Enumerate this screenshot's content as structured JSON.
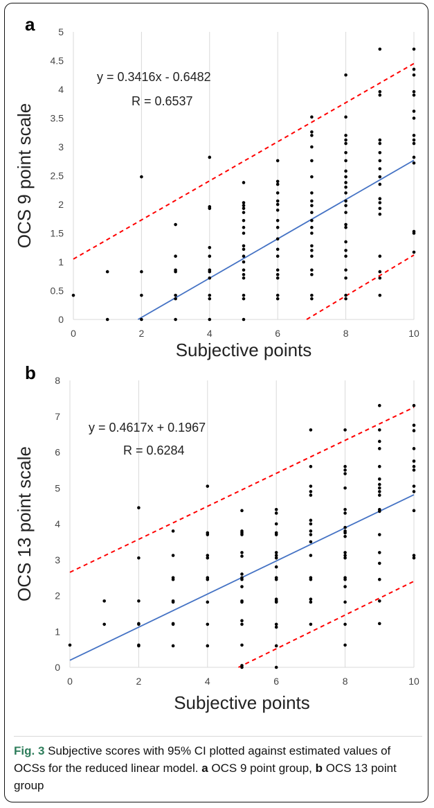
{
  "chart_data": [
    {
      "type": "scatter",
      "panel_label": "a",
      "xlabel": "Subjective points",
      "ylabel": "OCS 9 point scale",
      "xlim": [
        0,
        10
      ],
      "ylim": [
        0,
        5
      ],
      "x_ticks": [
        "0",
        "2",
        "4",
        "6",
        "8",
        "10"
      ],
      "y_ticks": [
        "0",
        "0.5",
        "1",
        "1.5",
        "2",
        "2.5",
        "3",
        "3.5",
        "4",
        "4.5",
        "5"
      ],
      "grid": "vertical",
      "equation": "y = 0.3416x - 0.6482",
      "r_label": "R = 0.6537",
      "fit": {
        "slope": 0.3416,
        "intercept": -0.6482
      },
      "ci_upper": [
        [
          0,
          1.05
        ],
        [
          10,
          4.45
        ]
      ],
      "ci_lower": [
        [
          6.85,
          0
        ],
        [
          10,
          1.12
        ]
      ],
      "colors": {
        "points": "#000000",
        "fit": "#4472c4",
        "ci": "#ff0000"
      },
      "points": [
        [
          0,
          0.42
        ],
        [
          1,
          0
        ],
        [
          1,
          0.83
        ],
        [
          2,
          0
        ],
        [
          2,
          0.42
        ],
        [
          2,
          0.83
        ],
        [
          2,
          2.48
        ],
        [
          3,
          0
        ],
        [
          3,
          0.36
        ],
        [
          3,
          0.42
        ],
        [
          3,
          0.83
        ],
        [
          3,
          0.86
        ],
        [
          3,
          1.1
        ],
        [
          3,
          1.65
        ],
        [
          4,
          0
        ],
        [
          4,
          0.36
        ],
        [
          4,
          0.42
        ],
        [
          4,
          0.72
        ],
        [
          4,
          0.83
        ],
        [
          4,
          0.86
        ],
        [
          4,
          1.1
        ],
        [
          4,
          1.25
        ],
        [
          4,
          1.93
        ],
        [
          4,
          1.96
        ],
        [
          4,
          2.82
        ],
        [
          5,
          0
        ],
        [
          5,
          0.36
        ],
        [
          5,
          0.42
        ],
        [
          5,
          0.72
        ],
        [
          5,
          0.78
        ],
        [
          5,
          0.86
        ],
        [
          5,
          1.0
        ],
        [
          5,
          1.1
        ],
        [
          5,
          1.22
        ],
        [
          5,
          1.28
        ],
        [
          5,
          1.5
        ],
        [
          5,
          1.6
        ],
        [
          5,
          1.72
        ],
        [
          5,
          1.86
        ],
        [
          5,
          1.93
        ],
        [
          5,
          1.98
        ],
        [
          5,
          2.03
        ],
        [
          5,
          2.38
        ],
        [
          6,
          0.36
        ],
        [
          6,
          0.42
        ],
        [
          6,
          0.72
        ],
        [
          6,
          0.78
        ],
        [
          6,
          0.86
        ],
        [
          6,
          1.1
        ],
        [
          6,
          1.22
        ],
        [
          6,
          1.4
        ],
        [
          6,
          1.6
        ],
        [
          6,
          1.72
        ],
        [
          6,
          1.9
        ],
        [
          6,
          2.0
        ],
        [
          6,
          2.06
        ],
        [
          6,
          2.2
        ],
        [
          6,
          2.35
        ],
        [
          6,
          2.4
        ],
        [
          6,
          2.76
        ],
        [
          7,
          0.36
        ],
        [
          7,
          0.42
        ],
        [
          7,
          0.78
        ],
        [
          7,
          0.86
        ],
        [
          7,
          1.1
        ],
        [
          7,
          1.2
        ],
        [
          7,
          1.28
        ],
        [
          7,
          1.5
        ],
        [
          7,
          1.6
        ],
        [
          7,
          1.72
        ],
        [
          7,
          1.86
        ],
        [
          7,
          1.98
        ],
        [
          7,
          2.06
        ],
        [
          7,
          2.2
        ],
        [
          7,
          2.48
        ],
        [
          7,
          2.76
        ],
        [
          7,
          3.0
        ],
        [
          7,
          3.2
        ],
        [
          7,
          3.26
        ],
        [
          7,
          3.52
        ],
        [
          8,
          0.36
        ],
        [
          8,
          0.42
        ],
        [
          8,
          0.72
        ],
        [
          8,
          0.86
        ],
        [
          8,
          1.1
        ],
        [
          8,
          1.2
        ],
        [
          8,
          1.35
        ],
        [
          8,
          1.6
        ],
        [
          8,
          1.65
        ],
        [
          8,
          1.86
        ],
        [
          8,
          1.98
        ],
        [
          8,
          2.06
        ],
        [
          8,
          2.2
        ],
        [
          8,
          2.3
        ],
        [
          8,
          2.38
        ],
        [
          8,
          2.48
        ],
        [
          8,
          2.58
        ],
        [
          8,
          2.76
        ],
        [
          8,
          2.9
        ],
        [
          8,
          3.06
        ],
        [
          8,
          3.12
        ],
        [
          8,
          3.2
        ],
        [
          8,
          3.52
        ],
        [
          8,
          4.25
        ],
        [
          9,
          0.42
        ],
        [
          9,
          0.72
        ],
        [
          9,
          0.83
        ],
        [
          9,
          1.1
        ],
        [
          9,
          1.83
        ],
        [
          9,
          1.93
        ],
        [
          9,
          2.03
        ],
        [
          9,
          2.1
        ],
        [
          9,
          2.35
        ],
        [
          9,
          2.48
        ],
        [
          9,
          2.62
        ],
        [
          9,
          2.76
        ],
        [
          9,
          2.9
        ],
        [
          9,
          3.06
        ],
        [
          9,
          3.12
        ],
        [
          9,
          3.9
        ],
        [
          9,
          3.96
        ],
        [
          9,
          4.7
        ],
        [
          10,
          1.17
        ],
        [
          10,
          1.5
        ],
        [
          10,
          1.53
        ],
        [
          10,
          2.72
        ],
        [
          10,
          2.82
        ],
        [
          10,
          3.06
        ],
        [
          10,
          3.12
        ],
        [
          10,
          3.2
        ],
        [
          10,
          3.5
        ],
        [
          10,
          3.62
        ],
        [
          10,
          3.9
        ],
        [
          10,
          3.96
        ],
        [
          10,
          4.25
        ],
        [
          10,
          4.35
        ],
        [
          10,
          4.7
        ]
      ]
    },
    {
      "type": "scatter",
      "panel_label": "b",
      "xlabel": "Subjective points",
      "ylabel": "OCS 13 point scale",
      "xlim": [
        0,
        10
      ],
      "ylim": [
        0,
        8
      ],
      "x_ticks": [
        "0",
        "2",
        "4",
        "6",
        "8",
        "10"
      ],
      "y_ticks": [
        "0",
        "1",
        "2",
        "3",
        "4",
        "5",
        "6",
        "7",
        "8"
      ],
      "grid": "vertical",
      "equation": "y = 0.4617x + 0.1967",
      "r_label": "R = 0.6284",
      "fit": {
        "slope": 0.4617,
        "intercept": 0.1967
      },
      "ci_upper": [
        [
          0,
          2.65
        ],
        [
          10,
          7.25
        ]
      ],
      "ci_lower": [
        [
          4.9,
          0
        ],
        [
          10,
          2.4
        ]
      ],
      "colors": {
        "points": "#000000",
        "fit": "#4472c4",
        "ci": "#ff0000"
      },
      "points": [
        [
          0,
          0.62
        ],
        [
          1,
          1.2
        ],
        [
          1,
          1.85
        ],
        [
          2,
          0.6
        ],
        [
          2,
          0.62
        ],
        [
          2,
          1.2
        ],
        [
          2,
          1.22
        ],
        [
          2,
          1.85
        ],
        [
          2,
          3.05
        ],
        [
          2,
          4.45
        ],
        [
          3,
          0.6
        ],
        [
          3,
          1.2
        ],
        [
          3,
          1.22
        ],
        [
          3,
          1.82
        ],
        [
          3,
          1.85
        ],
        [
          3,
          2.45
        ],
        [
          3,
          2.5
        ],
        [
          3,
          3.12
        ],
        [
          3,
          3.8
        ],
        [
          4,
          0.6
        ],
        [
          4,
          1.2
        ],
        [
          4,
          1.82
        ],
        [
          4,
          2.45
        ],
        [
          4,
          2.5
        ],
        [
          4,
          3.05
        ],
        [
          4,
          3.12
        ],
        [
          4,
          3.7
        ],
        [
          4,
          3.75
        ],
        [
          4,
          5.05
        ],
        [
          5,
          0
        ],
        [
          5,
          0.05
        ],
        [
          5,
          0.62
        ],
        [
          5,
          1.2
        ],
        [
          5,
          1.3
        ],
        [
          5,
          1.82
        ],
        [
          5,
          1.85
        ],
        [
          5,
          2.25
        ],
        [
          5,
          2.45
        ],
        [
          5,
          2.5
        ],
        [
          5,
          2.6
        ],
        [
          5,
          3.1
        ],
        [
          5,
          3.2
        ],
        [
          5,
          3.7
        ],
        [
          5,
          3.75
        ],
        [
          5,
          3.8
        ],
        [
          5,
          4.37
        ],
        [
          6,
          0
        ],
        [
          6,
          0.6
        ],
        [
          6,
          1.12
        ],
        [
          6,
          1.2
        ],
        [
          6,
          1.82
        ],
        [
          6,
          1.85
        ],
        [
          6,
          1.9
        ],
        [
          6,
          2.45
        ],
        [
          6,
          2.5
        ],
        [
          6,
          2.8
        ],
        [
          6,
          3.05
        ],
        [
          6,
          3.12
        ],
        [
          6,
          3.2
        ],
        [
          6,
          3.7
        ],
        [
          6,
          3.75
        ],
        [
          6,
          4.0
        ],
        [
          6,
          4.3
        ],
        [
          6,
          4.4
        ],
        [
          7,
          1.2
        ],
        [
          7,
          1.82
        ],
        [
          7,
          1.9
        ],
        [
          7,
          2.45
        ],
        [
          7,
          2.5
        ],
        [
          7,
          3.12
        ],
        [
          7,
          3.5
        ],
        [
          7,
          3.7
        ],
        [
          7,
          3.8
        ],
        [
          7,
          4.0
        ],
        [
          7,
          4.1
        ],
        [
          7,
          4.8
        ],
        [
          7,
          4.9
        ],
        [
          7,
          5.05
        ],
        [
          7,
          5.6
        ],
        [
          7,
          6.62
        ],
        [
          8,
          0.62
        ],
        [
          8,
          1.2
        ],
        [
          8,
          1.82
        ],
        [
          8,
          2.25
        ],
        [
          8,
          2.45
        ],
        [
          8,
          2.5
        ],
        [
          8,
          3.05
        ],
        [
          8,
          3.12
        ],
        [
          8,
          3.2
        ],
        [
          8,
          3.65
        ],
        [
          8,
          3.75
        ],
        [
          8,
          3.8
        ],
        [
          8,
          3.9
        ],
        [
          8,
          4.3
        ],
        [
          8,
          4.4
        ],
        [
          8,
          5.0
        ],
        [
          8,
          5.4
        ],
        [
          8,
          5.5
        ],
        [
          8,
          5.6
        ],
        [
          8,
          6.62
        ],
        [
          9,
          1.22
        ],
        [
          9,
          1.85
        ],
        [
          9,
          2.45
        ],
        [
          9,
          2.9
        ],
        [
          9,
          3.2
        ],
        [
          9,
          3.7
        ],
        [
          9,
          4.35
        ],
        [
          9,
          4.4
        ],
        [
          9,
          4.8
        ],
        [
          9,
          4.9
        ],
        [
          9,
          5.0
        ],
        [
          9,
          5.1
        ],
        [
          9,
          5.25
        ],
        [
          9,
          5.6
        ],
        [
          9,
          6.1
        ],
        [
          9,
          6.3
        ],
        [
          9,
          6.62
        ],
        [
          9,
          7.3
        ],
        [
          10,
          3.05
        ],
        [
          10,
          3.12
        ],
        [
          10,
          4.37
        ],
        [
          10,
          4.9
        ],
        [
          10,
          5.05
        ],
        [
          10,
          5.5
        ],
        [
          10,
          5.6
        ],
        [
          10,
          5.75
        ],
        [
          10,
          6.1
        ],
        [
          10,
          6.6
        ],
        [
          10,
          6.75
        ],
        [
          10,
          7.3
        ]
      ]
    }
  ],
  "caption": {
    "fig_label": "Fig. 3",
    "part1": " Subjective scores with 95% CI plotted against estimated values of OCSs for the reduced linear model. ",
    "a": "a",
    "part2": " OCS 9 point group, ",
    "b": "b",
    "part3": " OCS 13 point group"
  }
}
